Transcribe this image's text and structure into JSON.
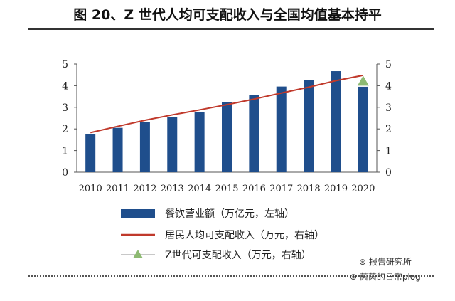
{
  "title": "图 20、Z 世代人均可支配收入与全国均值基本持平",
  "chart_data": {
    "type": "bar+line",
    "categories": [
      "2010",
      "2011",
      "2012",
      "2013",
      "2014",
      "2015",
      "2016",
      "2017",
      "2018",
      "2019",
      "2020"
    ],
    "series": [
      {
        "name": "餐饮营业额（万亿元，左轴）",
        "kind": "bar",
        "axis": "left",
        "values": [
          1.76,
          2.05,
          2.33,
          2.56,
          2.79,
          3.23,
          3.58,
          3.96,
          4.27,
          4.67,
          3.95
        ]
      },
      {
        "name": "居民人均可支配收入（万元，右轴）",
        "kind": "line",
        "axis": "right",
        "values": [
          1.83,
          2.12,
          2.4,
          2.65,
          2.88,
          3.12,
          3.38,
          3.66,
          3.93,
          4.23,
          4.48
        ]
      },
      {
        "name": "Z世代可支配收入（万元，右轴）",
        "kind": "marker",
        "axis": "right",
        "points": [
          {
            "x": "2020",
            "y": 4.2
          }
        ]
      }
    ],
    "y_left": {
      "min": 0,
      "max": 5,
      "ticks": [
        "0",
        "1",
        "2",
        "3",
        "4",
        "5"
      ]
    },
    "y_right": {
      "min": 0,
      "max": 5,
      "ticks": [
        "0",
        "1",
        "2",
        "3",
        "4",
        "5"
      ]
    },
    "colors": {
      "bar": "#1f4e8c",
      "line": "#c0392b",
      "marker": "#8dba72"
    },
    "legend_placement": "bottom"
  },
  "watermark": {
    "line1": "报告研究所",
    "line2": "茵茵的日常plog"
  }
}
